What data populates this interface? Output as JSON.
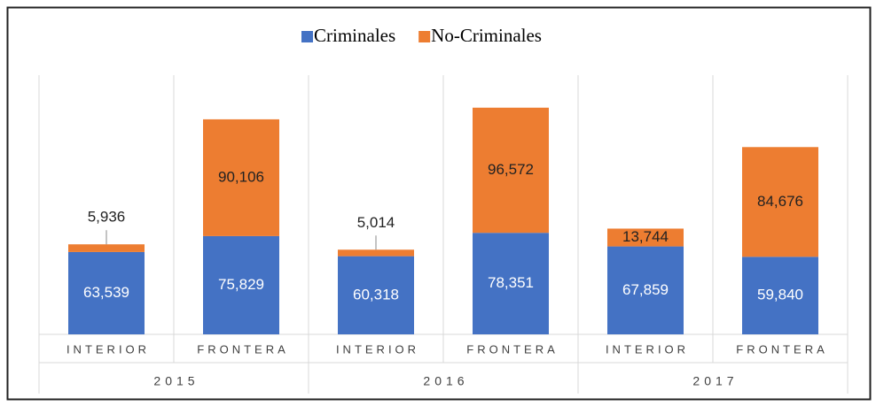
{
  "chart_data": {
    "type": "stacked-bar",
    "categories": [
      "INTERIOR",
      "FRONTERA",
      "INTERIOR",
      "FRONTERA",
      "INTERIOR",
      "FRONTERA"
    ],
    "groups": [
      "2015",
      "2016",
      "2017"
    ],
    "series": [
      {
        "name": "Criminales",
        "color": "#4472c4",
        "values": [
          63539,
          75829,
          60318,
          78351,
          67859,
          59840
        ],
        "value_labels": [
          "63,539",
          "75,829",
          "60,318",
          "78,351",
          "67,859",
          "59,840"
        ]
      },
      {
        "name": "No-Criminales",
        "color": "#ed7d31",
        "values": [
          5936,
          90106,
          5014,
          96572,
          13744,
          84676
        ],
        "value_labels": [
          "5,936",
          "90,106",
          "5,014",
          "96,572",
          "13,744",
          "84,676"
        ]
      }
    ],
    "ylim": [
      0,
      200000
    ],
    "legend": "top"
  }
}
